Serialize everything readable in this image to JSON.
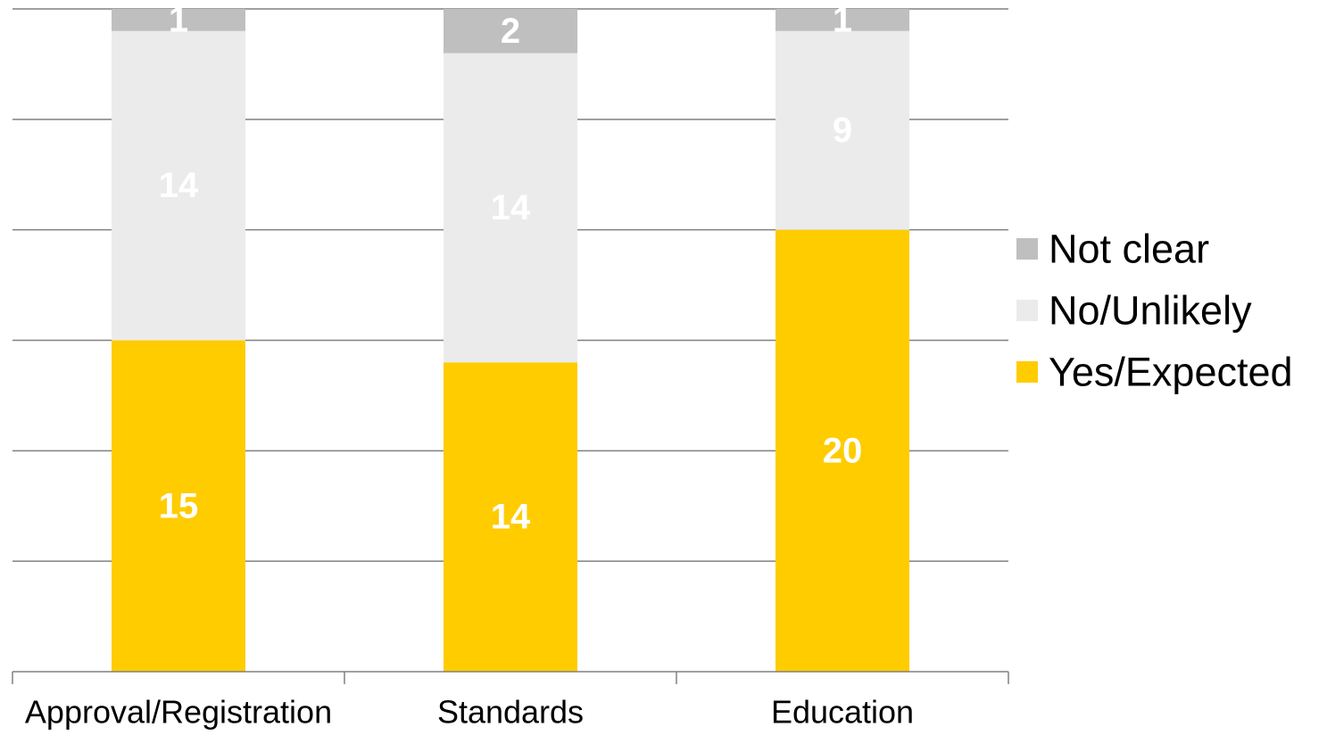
{
  "chart_data": {
    "type": "bar",
    "stacked": true,
    "categories": [
      "Approval/Registration",
      "Standards",
      "Education"
    ],
    "series": [
      {
        "name": "Yes/Expected",
        "values": [
          15,
          14,
          20
        ],
        "color": "#FFCC00"
      },
      {
        "name": "No/Unlikely",
        "values": [
          14,
          14,
          9
        ],
        "color": "#EBEBEB"
      },
      {
        "name": "Not clear",
        "values": [
          1,
          2,
          1
        ],
        "color": "#BFBFBF"
      }
    ],
    "ylim": [
      0,
      30
    ],
    "gridlines": true,
    "y_axis_labels_shown": false,
    "data_labels": true,
    "legend": {
      "position": "right",
      "order": [
        "Not clear",
        "No/Unlikely",
        "Yes/Expected"
      ]
    }
  }
}
